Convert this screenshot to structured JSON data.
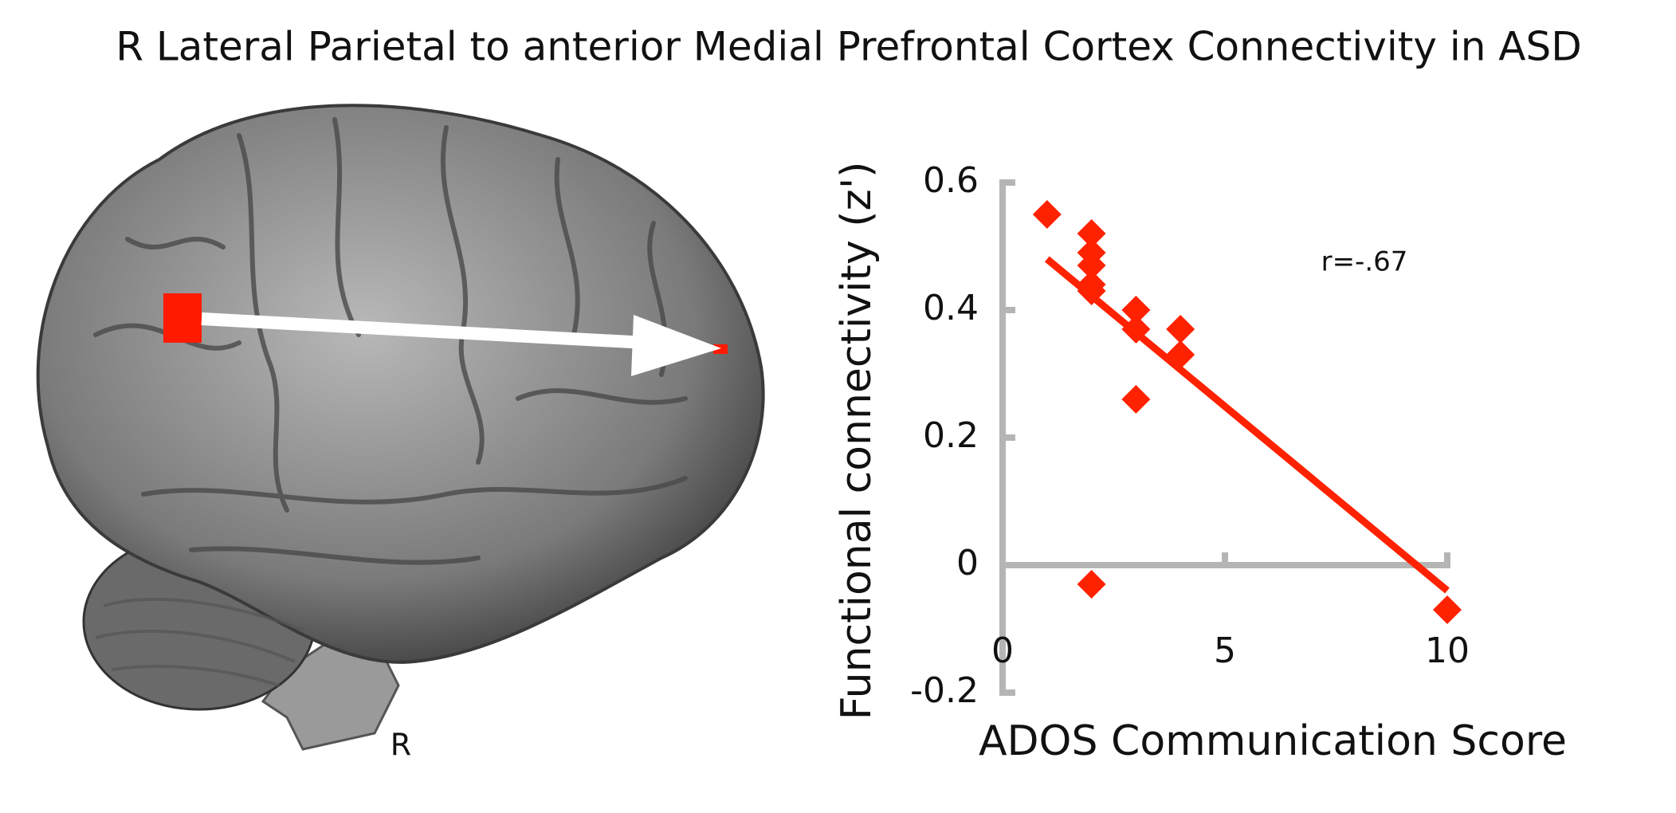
{
  "chart_data": {
    "type": "scatter",
    "title": "R Lateral Parietal to anterior Medial Prefrontal Cortex Connectivity in ASD",
    "x_label": "ADOS Communication Score",
    "y_label": "Functional connectivity (z')",
    "annotation": "r=-.67",
    "x": [
      1,
      2,
      2,
      2,
      2,
      2,
      3,
      3,
      4,
      4,
      3,
      2,
      10
    ],
    "values": [
      0.55,
      0.52,
      0.49,
      0.47,
      0.44,
      0.43,
      0.4,
      0.37,
      0.37,
      0.33,
      0.26,
      -0.03,
      -0.07
    ],
    "color": "#ff2200",
    "trendline": {
      "x": [
        1,
        10
      ],
      "values": [
        0.48,
        -0.04
      ],
      "color": "#ff2200"
    },
    "xlim": [
      0,
      10
    ],
    "ylim": [
      -0.2,
      0.6
    ],
    "xticks": [
      0,
      5,
      10
    ],
    "yticks": [
      -0.2,
      0,
      0.2,
      0.4,
      0.6
    ],
    "axis_color": "#b5b5b5"
  },
  "image": {
    "label": "R"
  }
}
